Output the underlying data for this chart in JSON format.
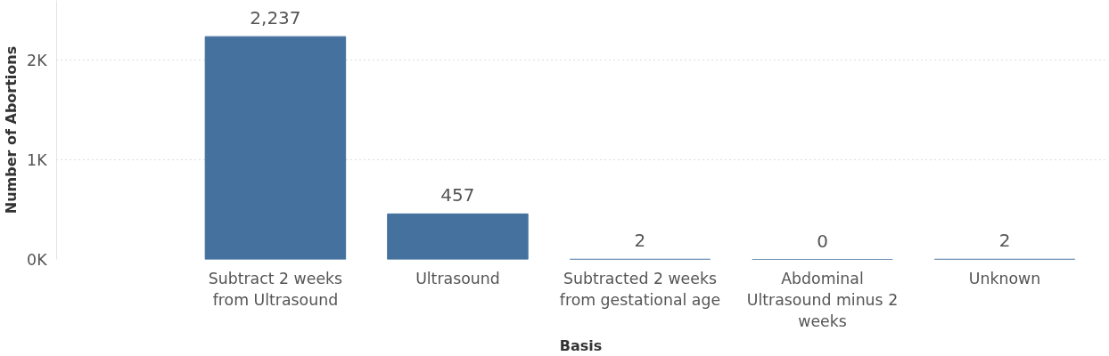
{
  "chart_data": {
    "type": "bar",
    "xlabel": "Basis",
    "ylabel": "Number of Abortions",
    "categories": [
      "Subtract 2 weeks\nfrom Ultrasound",
      "Ultrasound",
      "Subtracted 2 weeks\nfrom gestational age",
      "Abdominal\nUltrasound minus 2\nweeks",
      "Unknown"
    ],
    "values": [
      2237,
      457,
      2,
      0,
      2
    ],
    "value_labels": [
      "2,237",
      "457",
      "2",
      "0",
      "2"
    ],
    "color": "#44719e",
    "ylim": [
      0,
      2600
    ],
    "yticks": [
      {
        "value": 0,
        "label": "0K"
      },
      {
        "value": 1000,
        "label": "1K"
      },
      {
        "value": 2000,
        "label": "2K"
      }
    ],
    "grid": "y"
  }
}
